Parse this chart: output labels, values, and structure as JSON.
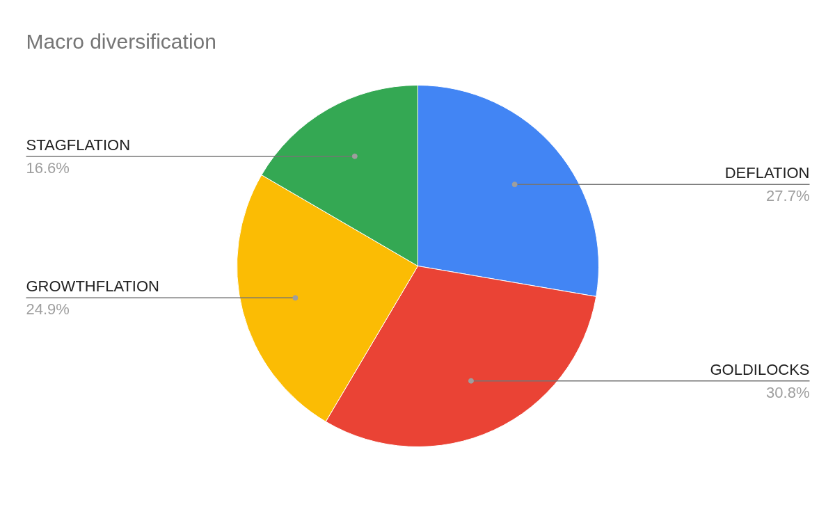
{
  "chart_data": {
    "type": "pie",
    "title": "Macro diversification",
    "categories": [
      "DEFLATION",
      "GOLDILOCKS",
      "GROWTHFLATION",
      "STAGFLATION"
    ],
    "values": [
      27.7,
      30.8,
      24.9,
      16.6
    ],
    "value_labels": [
      "27.7%",
      "30.8%",
      "24.9%",
      "16.6%"
    ],
    "colors": [
      "#4285f4",
      "#ea4335",
      "#fbbc04",
      "#34a853"
    ]
  }
}
